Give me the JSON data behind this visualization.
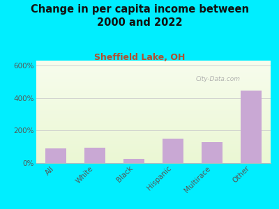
{
  "title": "Change in per capita income between\n2000 and 2022",
  "subtitle": "Sheffield Lake, OH",
  "categories": [
    "All",
    "White",
    "Black",
    "Hispanic",
    "Multirace",
    "Other"
  ],
  "values": [
    88,
    95,
    25,
    150,
    130,
    445
  ],
  "bar_color": "#c9a8d4",
  "background_outer": "#00eeff",
  "title_fontsize": 10.5,
  "subtitle_fontsize": 9,
  "subtitle_color": "#b05030",
  "title_color": "#111111",
  "watermark": "City-Data.com",
  "ylim": [
    0,
    630
  ],
  "yticks": [
    0,
    200,
    400,
    600
  ],
  "ytick_labels": [
    "0%",
    "200%",
    "400%",
    "600%"
  ]
}
